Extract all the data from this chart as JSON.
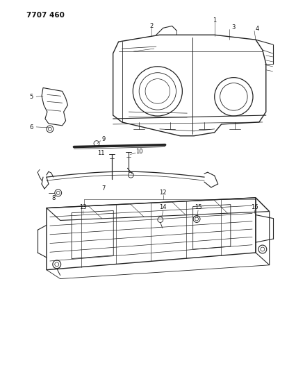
{
  "title": "7707 460",
  "background_color": "#ffffff",
  "line_color": "#222222",
  "text_color": "#111111",
  "fig_width": 4.27,
  "fig_height": 5.33,
  "dpi": 100
}
